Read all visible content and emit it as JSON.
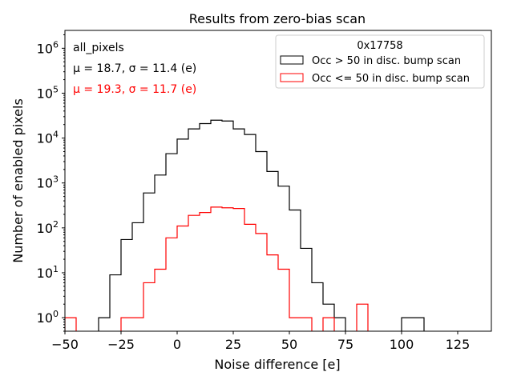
{
  "chart_data": {
    "type": "histogram",
    "title": "Results from zero-bias scan",
    "xlabel": "Noise difference [e]",
    "ylabel": "Number of enabled pixels",
    "xlim": [
      -50,
      140
    ],
    "ylim": [
      0.5,
      2500000
    ],
    "yscale": "log",
    "bin_width": 5,
    "x_ticks": [
      -50,
      -25,
      0,
      25,
      50,
      75,
      100,
      125
    ],
    "x_tick_labels": [
      "−50",
      "−25",
      "0",
      "25",
      "50",
      "75",
      "100",
      "125"
    ],
    "y_ticks": [
      1,
      10,
      100,
      1000,
      10000,
      100000,
      1000000
    ],
    "y_tick_mantissa": "10",
    "y_tick_exponents": [
      "0",
      "1",
      "2",
      "3",
      "4",
      "5",
      "6"
    ],
    "series": [
      {
        "name": "Occ > 50 in disc. bump scan",
        "color": "#000000",
        "bin_edges": [
          -35,
          -30,
          -25,
          -20,
          -15,
          -10,
          -5,
          0,
          5,
          10,
          15,
          20,
          25,
          30,
          35,
          40,
          45,
          50,
          55,
          60,
          65,
          70,
          75,
          80,
          85,
          90,
          95,
          100,
          105,
          110,
          115
        ],
        "values": [
          1,
          9,
          55,
          130,
          600,
          1500,
          4500,
          9500,
          16000,
          21000,
          25000,
          24000,
          16000,
          12000,
          5000,
          1800,
          850,
          250,
          35,
          6,
          2,
          1,
          0,
          0,
          0,
          0,
          0,
          1,
          1,
          0
        ]
      },
      {
        "name": "Occ <= 50 in disc. bump scan",
        "color": "#ff0000",
        "bin_edges": [
          -50,
          -45,
          -40,
          -35,
          -30,
          -25,
          -20,
          -15,
          -10,
          -5,
          0,
          5,
          10,
          15,
          20,
          25,
          30,
          35,
          40,
          45,
          50,
          55,
          60,
          65,
          70,
          75,
          80,
          85,
          90
        ],
        "values": [
          1,
          0,
          0,
          0,
          0,
          1,
          1,
          6,
          12,
          60,
          110,
          190,
          220,
          290,
          280,
          270,
          120,
          75,
          25,
          12,
          1,
          1,
          0,
          1,
          0,
          0,
          2,
          0
        ]
      }
    ],
    "annotations": [
      {
        "text": "all_pixels",
        "color": "#000000"
      },
      {
        "text": "μ = 18.7, σ = 11.4 (e)",
        "color": "#000000"
      },
      {
        "text": "μ = 19.3, σ = 11.7 (e)",
        "color": "#ff0000"
      }
    ],
    "legend": {
      "title": "0x17758",
      "placement": "top-right"
    }
  }
}
